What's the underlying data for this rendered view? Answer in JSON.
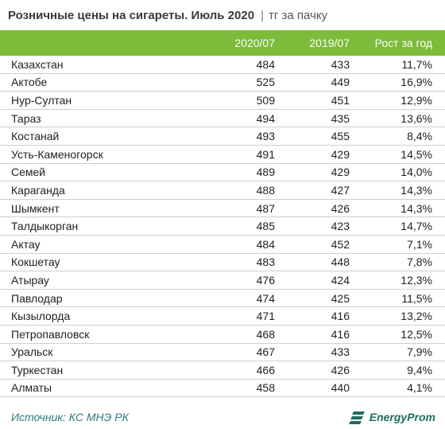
{
  "title": "Розничные цены на сигареты. Июль 2020",
  "unit": "тг за пачку",
  "separator": "|",
  "accent_color": "#7dbb3a",
  "chart_data": {
    "type": "table",
    "columns": [
      "",
      "2020/07",
      "2019/07",
      "Рост за год"
    ],
    "rows": [
      {
        "name": "Казахстан",
        "v2020": "484",
        "v2019": "433",
        "growth": "11,7%"
      },
      {
        "name": "Актобе",
        "v2020": "525",
        "v2019": "449",
        "growth": "16,9%"
      },
      {
        "name": "Нур-Султан",
        "v2020": "509",
        "v2019": "451",
        "growth": "12,9%"
      },
      {
        "name": "Тараз",
        "v2020": "494",
        "v2019": "435",
        "growth": "13,6%"
      },
      {
        "name": "Костанай",
        "v2020": "493",
        "v2019": "455",
        "growth": "8,4%"
      },
      {
        "name": "Усть-Каменогорск",
        "v2020": "491",
        "v2019": "429",
        "growth": "14,5%"
      },
      {
        "name": "Семей",
        "v2020": "489",
        "v2019": "429",
        "growth": "14,0%"
      },
      {
        "name": "Караганда",
        "v2020": "488",
        "v2019": "427",
        "growth": "14,3%"
      },
      {
        "name": "Шымкент",
        "v2020": "487",
        "v2019": "426",
        "growth": "14,3%"
      },
      {
        "name": "Талдыкорган",
        "v2020": "485",
        "v2019": "423",
        "growth": "14,7%"
      },
      {
        "name": "Актау",
        "v2020": "484",
        "v2019": "452",
        "growth": "7,1%"
      },
      {
        "name": "Кокшетау",
        "v2020": "483",
        "v2019": "448",
        "growth": "7,8%"
      },
      {
        "name": "Атырау",
        "v2020": "476",
        "v2019": "424",
        "growth": "12,3%"
      },
      {
        "name": "Павлодар",
        "v2020": "474",
        "v2019": "425",
        "growth": "11,5%"
      },
      {
        "name": "Кызылорда",
        "v2020": "471",
        "v2019": "416",
        "growth": "13,2%"
      },
      {
        "name": "Петропавловск",
        "v2020": "468",
        "v2019": "416",
        "growth": "12,5%"
      },
      {
        "name": "Уральск",
        "v2020": "467",
        "v2019": "433",
        "growth": "7,9%"
      },
      {
        "name": "Туркестан",
        "v2020": "466",
        "v2019": "426",
        "growth": "9,4%"
      },
      {
        "name": "Алматы",
        "v2020": "458",
        "v2019": "440",
        "growth": "4,1%"
      }
    ]
  },
  "footer": {
    "source": "Источник: КС МНЭ РК",
    "brand": "EnergyProm",
    "brand_icon": "energyprom-logo-icon"
  }
}
